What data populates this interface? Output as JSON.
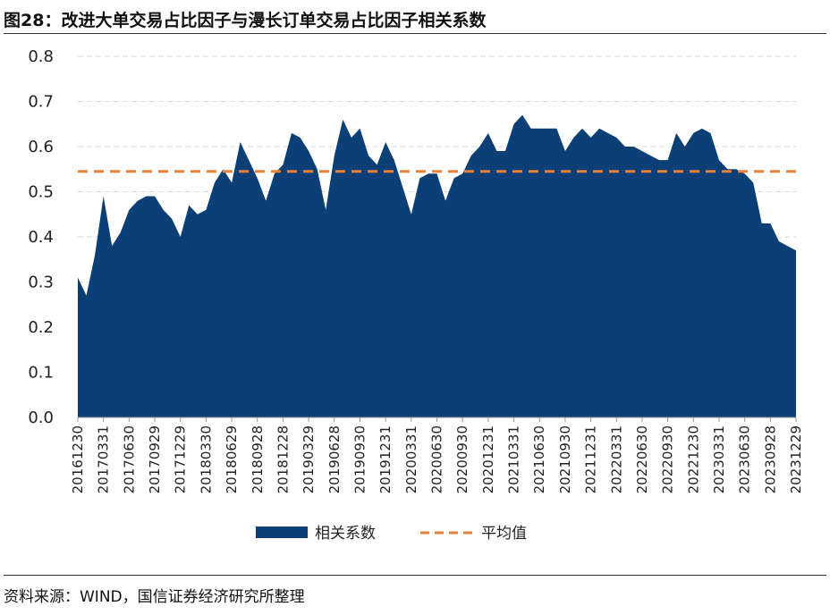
{
  "title": "图28：改进大单交易占比因子与漫长订单交易占比因子相关系数",
  "source": "资料来源：WIND，国信证券经济研究所整理",
  "colors": {
    "area": "#0b3f75",
    "mean_line": "#e8823a",
    "grid": "#d9d9d9",
    "axis": "#999999"
  },
  "chart_data": {
    "type": "area",
    "title": "改进大单交易占比因子与漫长订单交易占比因子相关系数",
    "xlabel": "",
    "ylabel": "",
    "ylim": [
      0,
      0.8
    ],
    "yticks": [
      0.0,
      0.1,
      0.2,
      0.3,
      0.4,
      0.5,
      0.6,
      0.7,
      0.8
    ],
    "ytick_labels": [
      "0.0",
      "0.1",
      "0.2",
      "0.3",
      "0.4",
      "0.5",
      "0.6",
      "0.7",
      "0.8"
    ],
    "xtick_labels": [
      "20161230",
      "20170331",
      "20170630",
      "20170929",
      "20171229",
      "20180330",
      "20180629",
      "20180928",
      "20181228",
      "20190329",
      "20190628",
      "20190930",
      "20191231",
      "20200331",
      "20200630",
      "20200930",
      "20201231",
      "20210331",
      "20210630",
      "20210930",
      "20211231",
      "20220331",
      "20220630",
      "20220930",
      "20221230",
      "20230331",
      "20230630",
      "20230928",
      "20231229"
    ],
    "grid": true,
    "legend_position": "bottom",
    "series": [
      {
        "name": "相关系数",
        "type": "area",
        "values": [
          0.31,
          0.27,
          0.36,
          0.49,
          0.38,
          0.41,
          0.46,
          0.48,
          0.49,
          0.49,
          0.46,
          0.44,
          0.4,
          0.47,
          0.45,
          0.46,
          0.52,
          0.55,
          0.52,
          0.61,
          0.57,
          0.53,
          0.48,
          0.54,
          0.56,
          0.63,
          0.62,
          0.59,
          0.55,
          0.46,
          0.58,
          0.66,
          0.62,
          0.64,
          0.58,
          0.56,
          0.61,
          0.57,
          0.51,
          0.45,
          0.53,
          0.54,
          0.54,
          0.48,
          0.53,
          0.54,
          0.58,
          0.6,
          0.63,
          0.59,
          0.59,
          0.65,
          0.67,
          0.64,
          0.64,
          0.64,
          0.64,
          0.59,
          0.62,
          0.64,
          0.62,
          0.64,
          0.63,
          0.62,
          0.6,
          0.6,
          0.59,
          0.58,
          0.57,
          0.57,
          0.63,
          0.6,
          0.63,
          0.64,
          0.63,
          0.57,
          0.55,
          0.55,
          0.54,
          0.52,
          0.43,
          0.43,
          0.39,
          0.38,
          0.37
        ]
      },
      {
        "name": "平均值",
        "type": "line",
        "style": "dashed",
        "value": 0.545
      }
    ]
  }
}
